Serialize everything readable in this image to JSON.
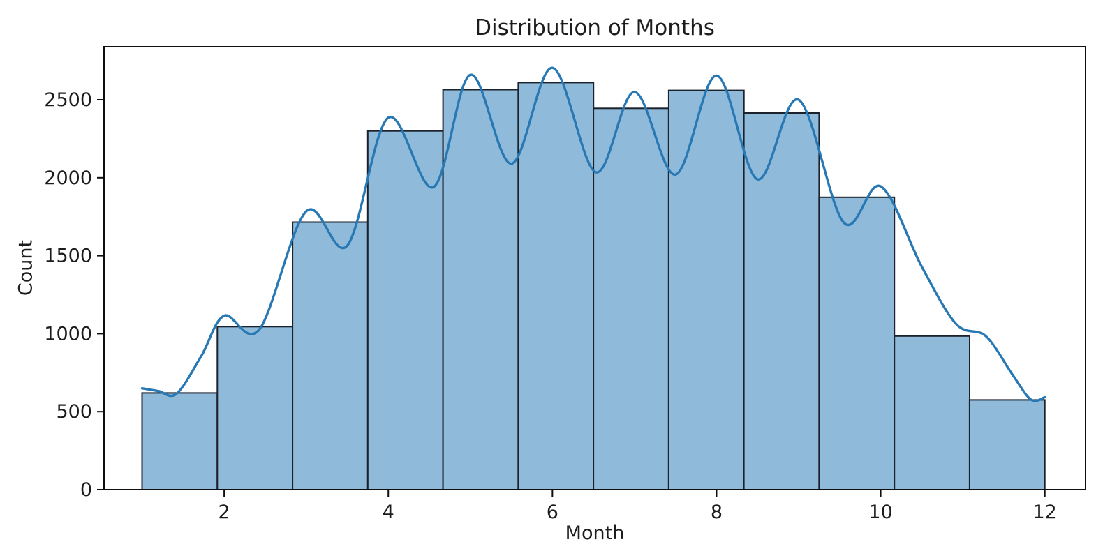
{
  "chart_data": {
    "type": "bar",
    "subtype": "histogram_with_kde",
    "title": "Distribution of Months",
    "xlabel": "Month",
    "ylabel": "Count",
    "grid": false,
    "legend": null,
    "bins": {
      "start": 1,
      "end": 12,
      "count": 12,
      "width": 0.9166667
    },
    "values": [
      620,
      1045,
      1715,
      2300,
      2565,
      2610,
      2445,
      2560,
      2415,
      1875,
      985,
      575
    ],
    "kde_points": [
      [
        1.0,
        650
      ],
      [
        1.2,
        632
      ],
      [
        1.42,
        615
      ],
      [
        1.72,
        855
      ],
      [
        2.0,
        1115
      ],
      [
        2.43,
        1028
      ],
      [
        3.0,
        1785
      ],
      [
        3.5,
        1565
      ],
      [
        4.0,
        2385
      ],
      [
        4.55,
        1940
      ],
      [
        5.0,
        2660
      ],
      [
        5.5,
        2090
      ],
      [
        6.0,
        2705
      ],
      [
        6.53,
        2035
      ],
      [
        7.0,
        2550
      ],
      [
        7.5,
        2020
      ],
      [
        8.0,
        2655
      ],
      [
        8.5,
        1990
      ],
      [
        9.0,
        2500
      ],
      [
        9.55,
        1712
      ],
      [
        10.0,
        1945
      ],
      [
        10.5,
        1430
      ],
      [
        10.92,
        1062
      ],
      [
        11.28,
        985
      ],
      [
        11.6,
        742
      ],
      [
        11.83,
        578
      ],
      [
        12.0,
        592
      ]
    ],
    "xticks": [
      2,
      4,
      6,
      8,
      10,
      12
    ],
    "yticks": [
      0,
      500,
      1000,
      1500,
      2000,
      2500
    ],
    "xlim": [
      0.536,
      12.496
    ],
    "ylim": [
      0,
      2840
    ],
    "colors": {
      "bar_fill": "#8fbad9",
      "bar_edge": "#1b222c",
      "kde_line": "#2878b4",
      "text": "#1c1c1c",
      "spine": "#0e0e0e",
      "background": "#ffffff"
    }
  }
}
